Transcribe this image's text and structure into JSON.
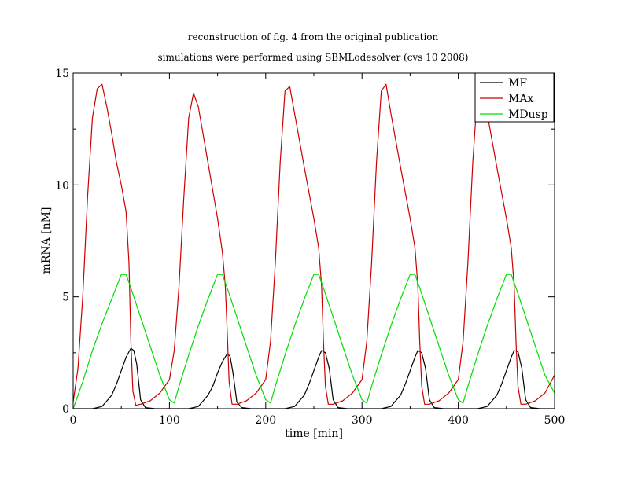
{
  "chart_data": {
    "type": "line",
    "title": "reconstruction of fig. 4 from the original publication",
    "subtitle": "simulations were performed using SBMLodesolver (cvs 10 2008)",
    "xlabel": "time [min]",
    "ylabel": "mRNA [nM]",
    "xlim": [
      0,
      500
    ],
    "ylim": [
      0,
      15
    ],
    "x_ticks": [
      0,
      100,
      200,
      300,
      400,
      500
    ],
    "y_ticks": [
      0,
      5,
      10,
      15
    ],
    "grid": false,
    "legend": "top-right",
    "series": [
      {
        "name": "MF",
        "color": "#000000",
        "x": [
          0,
          20,
          30,
          40,
          45,
          50,
          55,
          60,
          63,
          66,
          70,
          75,
          85,
          120,
          130,
          140,
          145,
          150,
          155,
          160,
          163,
          166,
          170,
          175,
          185,
          220,
          230,
          240,
          245,
          250,
          255,
          258,
          262,
          266,
          270,
          275,
          285,
          320,
          330,
          340,
          345,
          350,
          355,
          358,
          362,
          366,
          370,
          375,
          385,
          420,
          430,
          440,
          445,
          450,
          455,
          458,
          462,
          466,
          470,
          475,
          485,
          500
        ],
        "y": [
          0,
          0,
          0.1,
          0.6,
          1.1,
          1.7,
          2.3,
          2.7,
          2.6,
          2.0,
          0.4,
          0.05,
          0,
          0,
          0.1,
          0.6,
          1.0,
          1.6,
          2.1,
          2.45,
          2.35,
          1.6,
          0.3,
          0.05,
          0,
          0,
          0.1,
          0.6,
          1.1,
          1.7,
          2.3,
          2.6,
          2.5,
          1.8,
          0.4,
          0.05,
          0,
          0,
          0.1,
          0.6,
          1.1,
          1.7,
          2.3,
          2.6,
          2.5,
          1.8,
          0.4,
          0.05,
          0,
          0,
          0.1,
          0.6,
          1.1,
          1.7,
          2.3,
          2.6,
          2.55,
          1.8,
          0.4,
          0.05,
          0,
          0
        ]
      },
      {
        "name": "MAx",
        "color": "#cc0000",
        "x": [
          0,
          5,
          10,
          15,
          20,
          25,
          30,
          35,
          40,
          45,
          50,
          55,
          58,
          60,
          62,
          65,
          70,
          80,
          90,
          100,
          105,
          110,
          115,
          120,
          125,
          130,
          140,
          150,
          155,
          158,
          160,
          162,
          165,
          170,
          180,
          190,
          200,
          205,
          210,
          215,
          220,
          225,
          230,
          240,
          250,
          255,
          258,
          260,
          262,
          265,
          270,
          280,
          290,
          300,
          305,
          310,
          315,
          320,
          325,
          330,
          340,
          350,
          355,
          358,
          360,
          362,
          365,
          370,
          380,
          390,
          400,
          405,
          410,
          415,
          420,
          425,
          430,
          440,
          450,
          455,
          458,
          460,
          462,
          465,
          470,
          480,
          490,
          500
        ],
        "y": [
          0.3,
          1.8,
          5.0,
          9.5,
          13.0,
          14.3,
          14.5,
          13.5,
          12.3,
          11.0,
          10.0,
          8.8,
          6.5,
          3.0,
          0.8,
          0.15,
          0.2,
          0.35,
          0.7,
          1.3,
          2.6,
          5.5,
          9.5,
          13.0,
          14.1,
          13.5,
          11.0,
          8.5,
          7.0,
          5.5,
          3.5,
          1.2,
          0.2,
          0.2,
          0.35,
          0.7,
          1.3,
          3.0,
          6.5,
          11.0,
          14.2,
          14.4,
          13.2,
          10.8,
          8.5,
          7.2,
          5.5,
          3.0,
          1.0,
          0.2,
          0.2,
          0.35,
          0.7,
          1.3,
          3.0,
          6.5,
          11.0,
          14.2,
          14.5,
          13.2,
          10.8,
          8.5,
          7.2,
          5.5,
          3.0,
          1.0,
          0.2,
          0.2,
          0.35,
          0.7,
          1.3,
          3.0,
          6.5,
          11.0,
          14.2,
          14.4,
          13.2,
          10.8,
          8.5,
          7.2,
          5.5,
          3.0,
          1.0,
          0.2,
          0.2,
          0.35,
          0.7,
          1.5
        ]
      },
      {
        "name": "MDusp",
        "color": "#00dd00",
        "x": [
          0,
          10,
          20,
          30,
          40,
          50,
          55,
          60,
          70,
          80,
          90,
          100,
          105,
          110,
          120,
          130,
          140,
          150,
          155,
          160,
          170,
          180,
          190,
          200,
          205,
          210,
          220,
          230,
          240,
          250,
          255,
          260,
          270,
          280,
          290,
          300,
          305,
          310,
          320,
          330,
          340,
          350,
          355,
          360,
          370,
          380,
          390,
          400,
          405,
          410,
          420,
          430,
          440,
          450,
          455,
          460,
          470,
          480,
          490,
          500
        ],
        "y": [
          0,
          1.2,
          2.6,
          3.8,
          4.9,
          6.0,
          6.0,
          5.4,
          4.1,
          2.8,
          1.5,
          0.4,
          0.25,
          1.0,
          2.4,
          3.7,
          4.9,
          6.0,
          6.0,
          5.4,
          4.1,
          2.8,
          1.5,
          0.4,
          0.25,
          1.0,
          2.4,
          3.7,
          4.9,
          6.0,
          6.0,
          5.4,
          4.1,
          2.8,
          1.5,
          0.4,
          0.25,
          1.0,
          2.4,
          3.7,
          4.9,
          6.0,
          6.0,
          5.4,
          4.1,
          2.8,
          1.5,
          0.4,
          0.25,
          1.0,
          2.4,
          3.7,
          4.9,
          6.0,
          6.0,
          5.4,
          4.1,
          2.8,
          1.5,
          0.7
        ]
      }
    ]
  }
}
